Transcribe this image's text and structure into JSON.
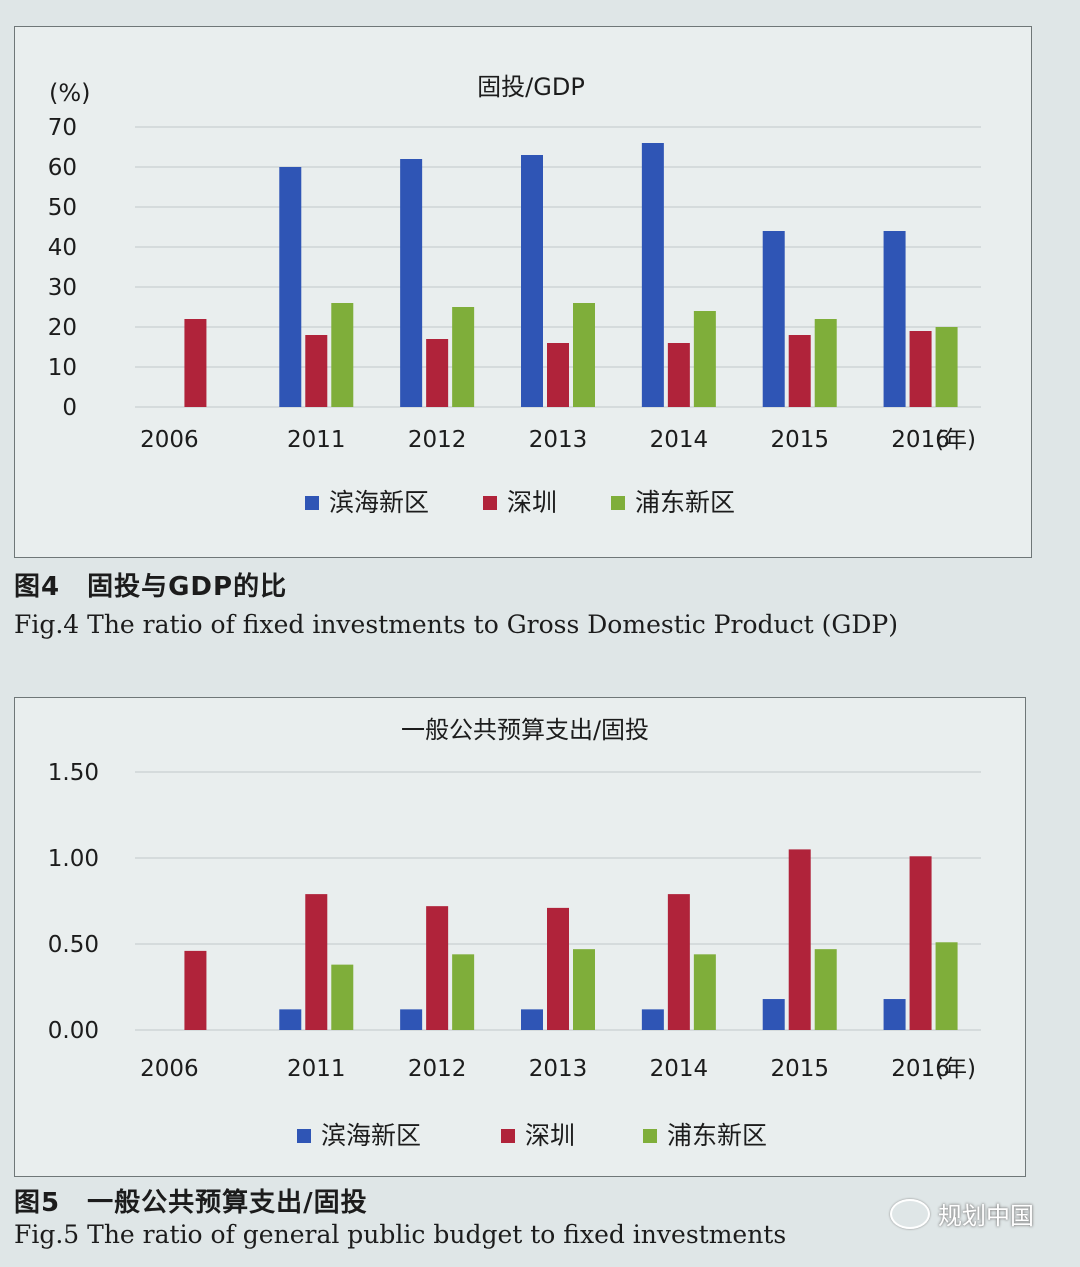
{
  "chart_data": [
    {
      "type": "bar",
      "title": "固投/GDP",
      "ylabel": "(%)",
      "xunit": "(年)",
      "ylim": [
        0,
        70
      ],
      "yticks": [
        0,
        10,
        20,
        30,
        40,
        50,
        60,
        70
      ],
      "grid": true,
      "legend_position": "bottom",
      "categories": [
        "2006",
        "2011",
        "2012",
        "2013",
        "2014",
        "2015",
        "2016"
      ],
      "series": [
        {
          "name": "滨海新区",
          "color": "#2f55b5",
          "values": [
            null,
            60,
            62,
            63,
            66,
            44,
            44
          ]
        },
        {
          "name": "深圳",
          "color": "#b0233a",
          "values": [
            22,
            18,
            17,
            16,
            16,
            18,
            19
          ]
        },
        {
          "name": "浦东新区",
          "color": "#7fae3a",
          "values": [
            null,
            26,
            25,
            26,
            24,
            22,
            20
          ]
        }
      ]
    },
    {
      "type": "bar",
      "title": "一般公共预算支出/固投",
      "ylabel": "",
      "xunit": "(年)",
      "ylim": [
        0,
        1.5
      ],
      "yticks": [
        "0.00",
        "0.50",
        "1.00",
        "1.50"
      ],
      "grid": true,
      "legend_position": "bottom",
      "categories": [
        "2006",
        "2011",
        "2012",
        "2013",
        "2014",
        "2015",
        "2016"
      ],
      "series": [
        {
          "name": "滨海新区",
          "color": "#2f55b5",
          "values": [
            null,
            0.12,
            0.12,
            0.12,
            0.12,
            0.18,
            0.18
          ]
        },
        {
          "name": "深圳",
          "color": "#b0233a",
          "values": [
            0.46,
            0.79,
            0.72,
            0.71,
            0.79,
            1.05,
            1.01
          ]
        },
        {
          "name": "浦东新区",
          "color": "#7fae3a",
          "values": [
            null,
            0.38,
            0.44,
            0.47,
            0.44,
            0.47,
            0.51
          ]
        }
      ]
    }
  ],
  "captions": {
    "fig4_zh": "图4　固投与GDP的比",
    "fig4_en": "Fig.4 The ratio of fixed investments to Gross Domestic Product (GDP)",
    "fig5_zh": "图5　一般公共预算支出/固投",
    "fig5_en": "Fig.5 The ratio of general public budget to fixed investments"
  },
  "watermark": "规划中国"
}
